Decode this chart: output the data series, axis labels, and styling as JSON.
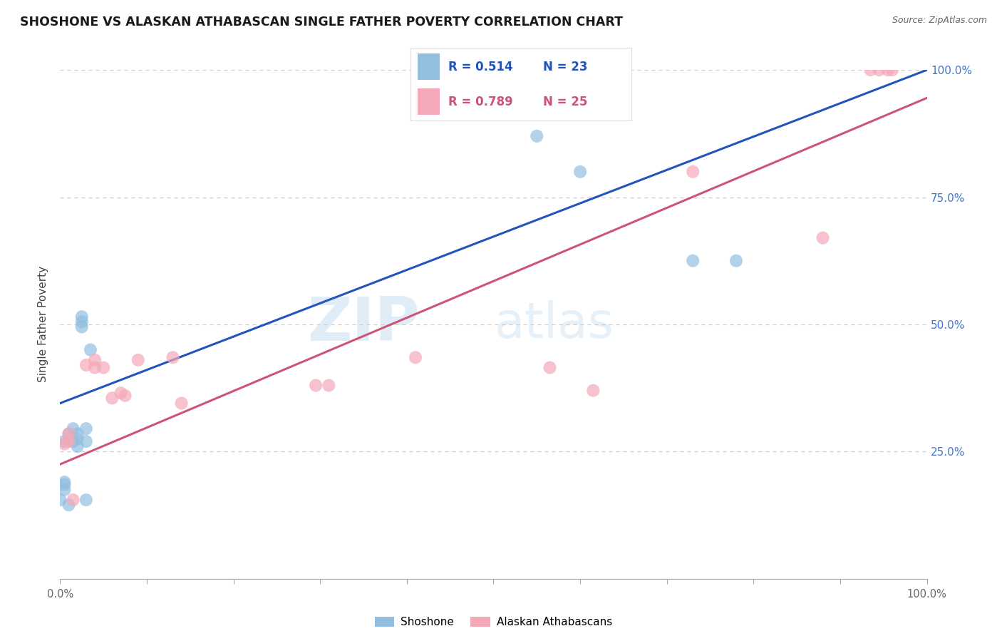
{
  "title": "SHOSHONE VS ALASKAN ATHABASCAN SINGLE FATHER POVERTY CORRELATION CHART",
  "source": "Source: ZipAtlas.com",
  "ylabel": "Single Father Poverty",
  "xlim": [
    0,
    1.0
  ],
  "ylim": [
    0,
    1.0
  ],
  "ytick_values": [
    0.25,
    0.5,
    0.75,
    1.0
  ],
  "ytick_labels": [
    "25.0%",
    "50.0%",
    "75.0%",
    "100.0%"
  ],
  "r_shoshone": 0.514,
  "n_shoshone": 23,
  "r_athabascan": 0.789,
  "n_athabascan": 25,
  "shoshone_color": "#92bfe0",
  "athabascan_color": "#f5a8b8",
  "shoshone_line_color": "#2255bb",
  "athabascan_line_color": "#cc5577",
  "background_color": "#ffffff",
  "watermark_zip": "ZIP",
  "watermark_atlas": "atlas",
  "shoshone_x": [
    0.005,
    0.01,
    0.015,
    0.015,
    0.02,
    0.02,
    0.02,
    0.025,
    0.025,
    0.025,
    0.03,
    0.03,
    0.035,
    0.0,
    0.005,
    0.005,
    0.005,
    0.01,
    0.03,
    0.55,
    0.6,
    0.73,
    0.78
  ],
  "shoshone_y": [
    0.27,
    0.285,
    0.27,
    0.295,
    0.26,
    0.275,
    0.285,
    0.495,
    0.505,
    0.515,
    0.27,
    0.295,
    0.45,
    0.155,
    0.175,
    0.185,
    0.19,
    0.145,
    0.155,
    0.87,
    0.8,
    0.625,
    0.625
  ],
  "athabascan_x": [
    0.005,
    0.01,
    0.01,
    0.015,
    0.03,
    0.04,
    0.04,
    0.05,
    0.06,
    0.07,
    0.075,
    0.09,
    0.13,
    0.14,
    0.295,
    0.31,
    0.41,
    0.565,
    0.615,
    0.73,
    0.88,
    0.935,
    0.945,
    0.955,
    0.96
  ],
  "athabascan_y": [
    0.265,
    0.27,
    0.285,
    0.155,
    0.42,
    0.415,
    0.43,
    0.415,
    0.355,
    0.365,
    0.36,
    0.43,
    0.435,
    0.345,
    0.38,
    0.38,
    0.435,
    0.415,
    0.37,
    0.8,
    0.67,
    1.0,
    1.0,
    1.0,
    1.0
  ],
  "legend_label_shoshone": "Shoshone",
  "legend_label_athabascan": "Alaskan Athabascans",
  "line_intercept_blue": 0.345,
  "line_slope_blue": 0.655,
  "line_intercept_pink": 0.225,
  "line_slope_pink": 0.72
}
